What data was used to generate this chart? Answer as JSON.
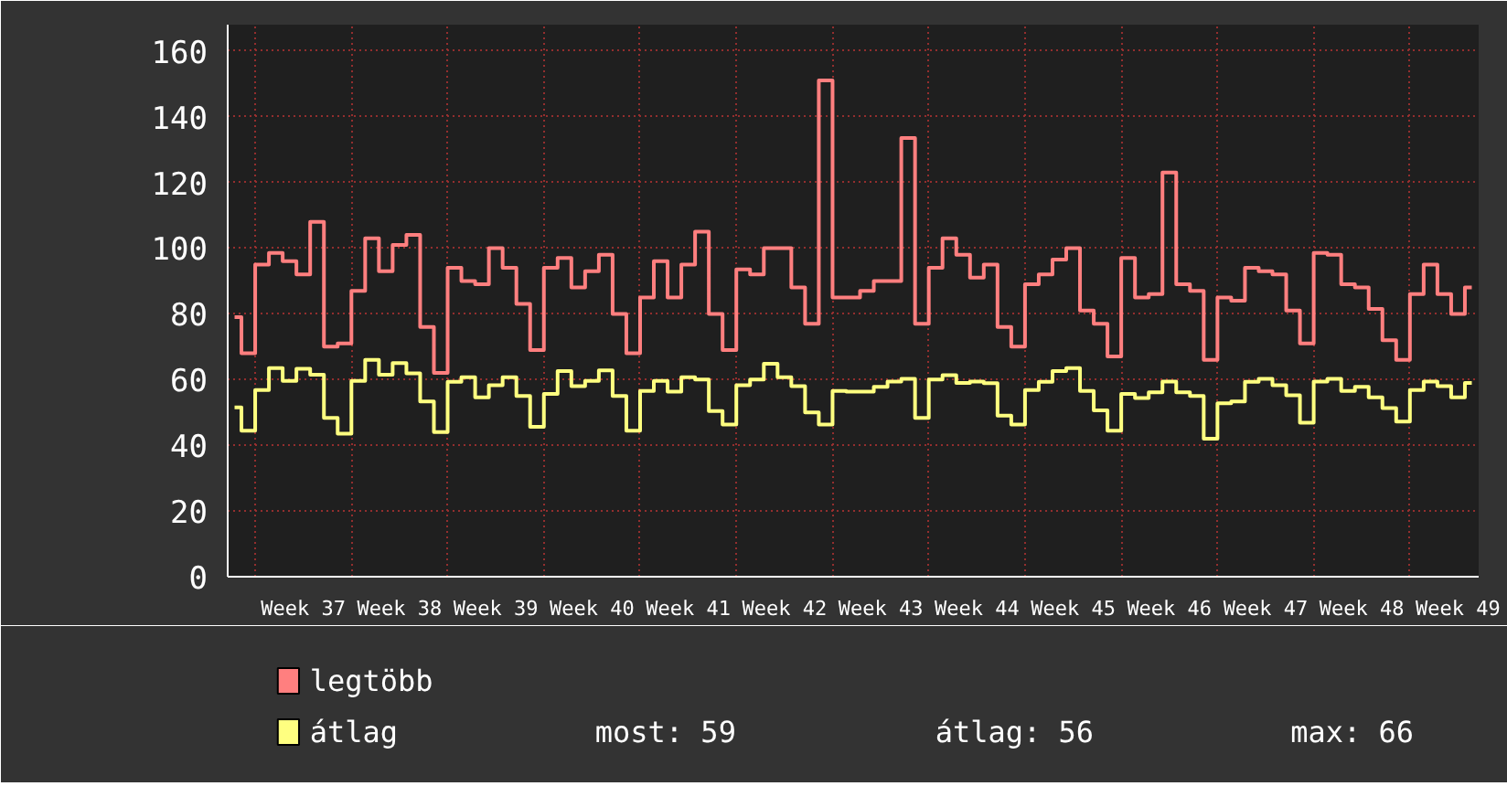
{
  "chart_data": {
    "type": "step",
    "categories": [
      null,
      null,
      null,
      null,
      null,
      "Week 37",
      null,
      null,
      null,
      null,
      null,
      null,
      "Week 38",
      null,
      null,
      null,
      null,
      null,
      null,
      "Week 39",
      null,
      null,
      null,
      null,
      null,
      null,
      "Week 40",
      null,
      null,
      null,
      null,
      null,
      null,
      "Week 41",
      null,
      null,
      null,
      null,
      null,
      null,
      "Week 42",
      null,
      null,
      null,
      null,
      null,
      null,
      "Week 43",
      null,
      null,
      null,
      null,
      null,
      null,
      "Week 44",
      null,
      null,
      null,
      null,
      null,
      null,
      "Week 45",
      null,
      null,
      null,
      null,
      null,
      null,
      "Week 46",
      null,
      null,
      null,
      null,
      null,
      null,
      "Week 47",
      null,
      null,
      null,
      null,
      null,
      null,
      "Week 48",
      null,
      null,
      null,
      null,
      null,
      null,
      "Week 49",
      null
    ],
    "series": [
      {
        "name": "legtöbb",
        "color": "#ff7f7f",
        "values": [
          79,
          68,
          95,
          98.5,
          96,
          92,
          108,
          70,
          71,
          87,
          103,
          93,
          101,
          104,
          76,
          62,
          94,
          90,
          89,
          100,
          94,
          83,
          69,
          94,
          97,
          88,
          93,
          98,
          80,
          68,
          85,
          96,
          85,
          95,
          105,
          80,
          69,
          93.5,
          92,
          100,
          100,
          88,
          77,
          151,
          85,
          85,
          87,
          90,
          90,
          133.5,
          77,
          94,
          103,
          98,
          91,
          95,
          76,
          70,
          89,
          92,
          96.5,
          100,
          81,
          77,
          67,
          97,
          85,
          86,
          123,
          89,
          87,
          66,
          85,
          84,
          94,
          93,
          92,
          81,
          71,
          98.5,
          98,
          89,
          88,
          81.5,
          72,
          66,
          86,
          95,
          86,
          80,
          88
        ]
      },
      {
        "name": "átlag",
        "color": "#ffff80",
        "values": [
          51.5,
          44.4,
          56.8,
          63.5,
          59.6,
          63.3,
          61.5,
          48.3,
          43.5,
          59.6,
          66,
          61.5,
          65,
          61.9,
          53.3,
          44,
          59.3,
          60.7,
          54.6,
          58.3,
          60.7,
          55,
          45.6,
          55.6,
          62.6,
          58,
          59.6,
          62.8,
          55,
          44.4,
          56.5,
          59.6,
          56.3,
          60.7,
          60,
          50.4,
          46.3,
          58.3,
          60,
          64.8,
          60.7,
          58,
          50,
          46.3,
          56.5,
          56.3,
          56.3,
          57.8,
          59.4,
          60.2,
          48.3,
          60,
          61.3,
          59,
          59.4,
          58.9,
          49,
          46.3,
          56.8,
          59.3,
          62.6,
          63.5,
          56.5,
          50.6,
          44.4,
          55.6,
          54.4,
          56.1,
          59.4,
          56.1,
          55,
          42,
          52.8,
          53.3,
          59.3,
          60.2,
          58.3,
          55.2,
          46.9,
          59.4,
          60.2,
          56.5,
          57.8,
          54.6,
          51.3,
          47.2,
          56.8,
          59.4,
          58,
          54.6,
          59
        ]
      }
    ],
    "ylim": [
      0,
      168
    ],
    "yticks": [
      0,
      20,
      40,
      60,
      80,
      100,
      120,
      140,
      160
    ],
    "grid": true,
    "legend": "bottom",
    "annotations": [
      "most: 59",
      "átlag: 56",
      "max: 66"
    ]
  }
}
